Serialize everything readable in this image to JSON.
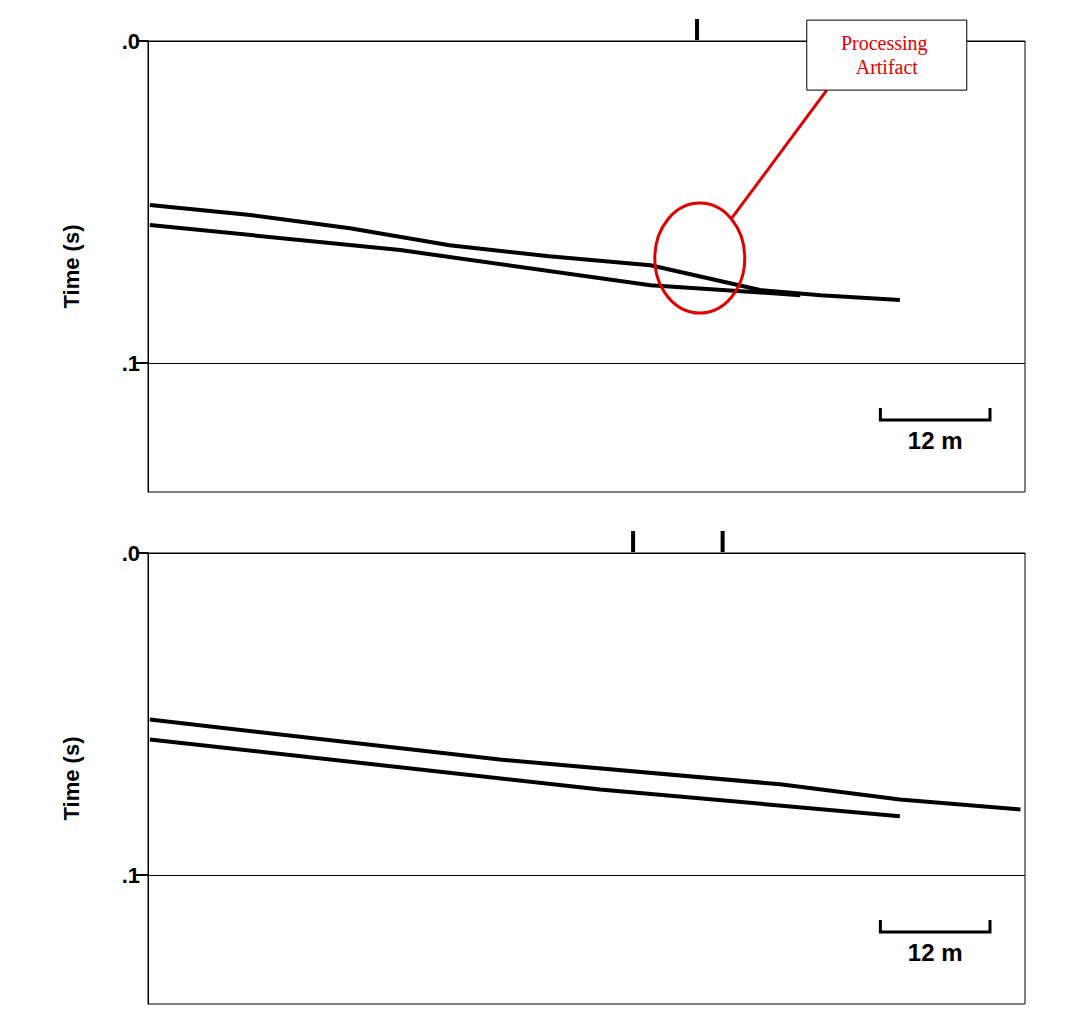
{
  "chart_data": [
    {
      "type": "line",
      "ylabel": "Time (s)",
      "xlim": [
        0,
        96
      ],
      "ylim": [
        0,
        0.14
      ],
      "yticks": [
        {
          "value": 0,
          "label": ".0"
        },
        {
          "value": 0.1,
          "label": ".1"
        }
      ],
      "tick_labels": "y",
      "grid": true,
      "series": [
        {
          "color": "#000000",
          "x": [
            0.2,
            11.2,
            22.1,
            33.0,
            43.9,
            55.0,
            67.0,
            73.6,
            82.3
          ],
          "values": [
            0.0509,
            0.054,
            0.0581,
            0.0634,
            0.0668,
            0.0696,
            0.0773,
            0.0789,
            0.0804
          ]
        },
        {
          "color": "#000000",
          "x": [
            0.2,
            27.6,
            55.0,
            71.4
          ],
          "values": [
            0.0571,
            0.0649,
            0.0758,
            0.0789
          ]
        }
      ],
      "markers": [
        60.1
      ],
      "scale_bar": {
        "length": 12,
        "label": "12 m"
      },
      "annotations": [
        {
          "text": "Processing Artifact",
          "x": 60.4,
          "y": 0.0674,
          "color": "#e00000"
        }
      ]
    },
    {
      "type": "line",
      "ylabel": "Time (s)",
      "xlim": [
        0,
        96
      ],
      "ylim": [
        0,
        0.14
      ],
      "yticks": [
        {
          "value": 0,
          "label": ".0"
        },
        {
          "value": 0.1,
          "label": ".1"
        }
      ],
      "tick_labels": "y",
      "grid": true,
      "series": [
        {
          "color": "#000000",
          "x": [
            0.2,
            38.5,
            69.2,
            82.3,
            95.5
          ],
          "values": [
            0.0517,
            0.0641,
            0.0718,
            0.0765,
            0.0796
          ]
        },
        {
          "color": "#000000",
          "x": [
            0.2,
            49.5,
            82.3
          ],
          "values": [
            0.0579,
            0.0734,
            0.0817
          ]
        }
      ],
      "markers": [
        53.1,
        62.9
      ],
      "scale_bar": {
        "length": 12,
        "label": "12 m"
      }
    }
  ]
}
